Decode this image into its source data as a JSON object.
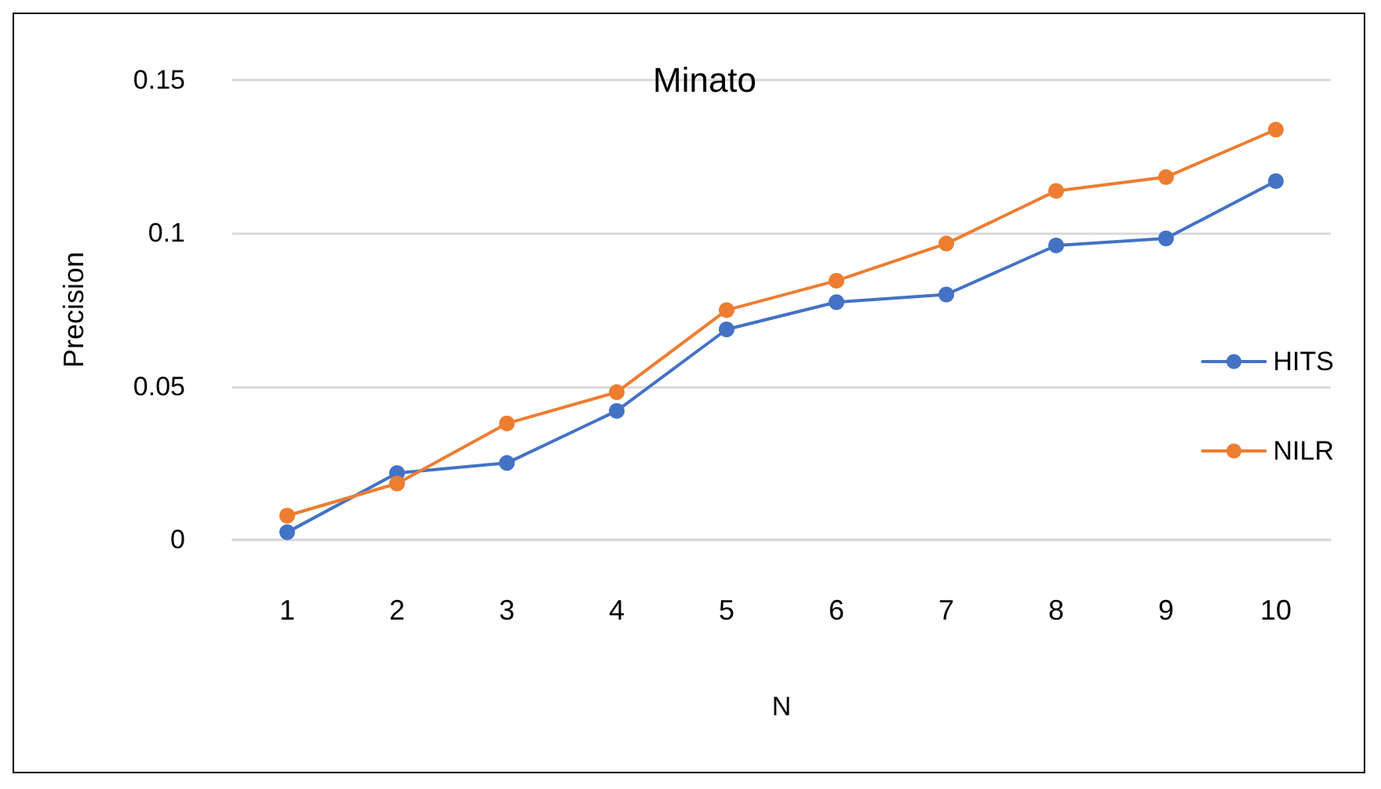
{
  "chart_data": {
    "type": "line",
    "title": "Minato",
    "xlabel": "N",
    "ylabel": "Precision",
    "categories": [
      "1",
      "2",
      "3",
      "4",
      "5",
      "6",
      "7",
      "8",
      "9",
      "10"
    ],
    "series": [
      {
        "name": "HITS",
        "color": "#4472c4",
        "values": [
          0.0024,
          0.0217,
          0.025,
          0.042,
          0.0686,
          0.0775,
          0.08,
          0.096,
          0.0983,
          0.117
        ]
      },
      {
        "name": "NILR",
        "color": "#ed7d31",
        "values": [
          0.0078,
          0.0183,
          0.0379,
          0.0481,
          0.0749,
          0.0845,
          0.0966,
          0.1138,
          0.1183,
          0.1338
        ]
      }
    ],
    "ylim": [
      0,
      0.15
    ],
    "yticks": [
      0,
      0.05,
      0.1,
      0.15
    ],
    "grid": "y",
    "legend": "right",
    "marker": "circle",
    "line_style": "solid"
  }
}
